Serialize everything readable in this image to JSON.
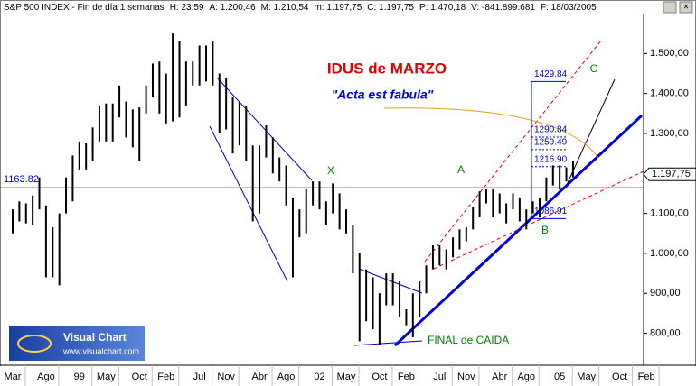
{
  "header": [
    "S&P 500 INDEX - Fin de día 1 semanas",
    "H: 23:59",
    "A: 1.200,46",
    "M: 1.210,54",
    "m: 1.197,75",
    "C: 1.197,75",
    "P: 1.470,18",
    "V: -841.899.681",
    "F: 18/03/2005"
  ],
  "logo": {
    "title": "Visual Chart",
    "url": "www.visualchart.com"
  },
  "chart_data": {
    "type": "range",
    "categories": [
      "Mar",
      null,
      null,
      null,
      null,
      "Ago",
      null,
      null,
      null,
      null,
      "99",
      null,
      null,
      null,
      "May",
      null,
      null,
      null,
      null,
      "Oct",
      null,
      null,
      null,
      "Feb",
      null,
      null,
      null,
      null,
      "Jul",
      null,
      null,
      null,
      "Nov",
      null,
      null,
      null,
      null,
      "Abr",
      null,
      null,
      null,
      "Ago",
      null,
      null,
      null,
      null,
      "02",
      null,
      null,
      null,
      "May",
      null,
      null,
      null,
      null,
      "Oct",
      null,
      null,
      null,
      "Feb",
      null,
      null,
      null,
      null,
      "Jul",
      null,
      null,
      null,
      "Nov",
      null,
      null,
      null,
      null,
      "Abr",
      null,
      null,
      null,
      "Ago",
      null,
      null,
      null,
      null,
      "05",
      null,
      null,
      null,
      "May",
      null,
      null,
      null,
      null,
      "Oct",
      null,
      null,
      null,
      "Feb"
    ],
    "high": [
      1110,
      1130,
      1125,
      1145,
      1190,
      1120,
      1065,
      1100,
      1190,
      1245,
      1280,
      1275,
      1315,
      1370,
      1375,
      1375,
      1420,
      1380,
      1360,
      1365,
      1420,
      1475,
      1480,
      1450,
      1550,
      1530,
      1480,
      1480,
      1520,
      1520,
      1530,
      1450,
      1440,
      1390,
      1380,
      1370,
      1270,
      1270,
      1320,
      1290,
      1240,
      1220,
      1140,
      1110,
      1160,
      1180,
      1180,
      1130,
      1175,
      1150,
      1110,
      1070,
      1000,
      960,
      940,
      900,
      950,
      950,
      930,
      860,
      900,
      930,
      970,
      1020,
      1020,
      1010,
      1040,
      1060,
      1065,
      1115,
      1155,
      1160,
      1160,
      1150,
      1125,
      1150,
      1140,
      1110,
      1130,
      1140,
      1190,
      1220,
      1220,
      1215,
      1230,
      null,
      null,
      null,
      null,
      null,
      null,
      null,
      null,
      null,
      null,
      null
    ],
    "low": [
      1050,
      1080,
      1075,
      1070,
      1110,
      940,
      940,
      920,
      1100,
      1130,
      1210,
      1210,
      1230,
      1280,
      1280,
      1280,
      1340,
      1290,
      1265,
      1230,
      1350,
      1390,
      1350,
      1325,
      1330,
      1340,
      1370,
      1420,
      1420,
      1430,
      1420,
      1300,
      1310,
      1250,
      1270,
      1230,
      1080,
      1100,
      1240,
      1200,
      1180,
      1120,
      940,
      1040,
      1050,
      1120,
      1110,
      1070,
      1100,
      1060,
      1050,
      950,
      780,
      830,
      810,
      770,
      870,
      870,
      840,
      820,
      790,
      840,
      900,
      960,
      970,
      960,
      990,
      1010,
      1030,
      1060,
      1090,
      1125,
      1090,
      1100,
      1075,
      1110,
      1080,
      1060,
      1100,
      1090,
      1130,
      1170,
      1160,
      1180,
      1190,
      null,
      null,
      null,
      null,
      null,
      null,
      null,
      null,
      null,
      null,
      null
    ],
    "color": "#000000",
    "ylim": [
      720,
      1600
    ],
    "yticks": [
      {
        "value": 800,
        "label": "800,00"
      },
      {
        "value": 900,
        "label": "900,00"
      },
      {
        "value": 1000,
        "label": "1.000,00"
      },
      {
        "value": 1100,
        "label": "1.100,00"
      },
      {
        "value": 1200,
        "label": "1.200,00"
      },
      {
        "value": 1300,
        "label": "1.300,00"
      },
      {
        "value": 1400,
        "label": "1.400,00"
      },
      {
        "value": 1500,
        "label": "1.500,00"
      }
    ],
    "last": {
      "value": 1197.75,
      "label": "1.197,75"
    },
    "support": 1163.82,
    "levels": [
      1429.84,
      1290.84,
      1259.49,
      {
        "value": 1216.9,
        "label": "1216.90"
      },
      1086.91
    ],
    "annotations": {
      "title": "IDUS de MARZO",
      "subtitle": "\"Acta est fabula\"",
      "x": "X",
      "a": "A",
      "b": "B",
      "c": "C",
      "bottom": "FINAL de CAIDA"
    }
  }
}
